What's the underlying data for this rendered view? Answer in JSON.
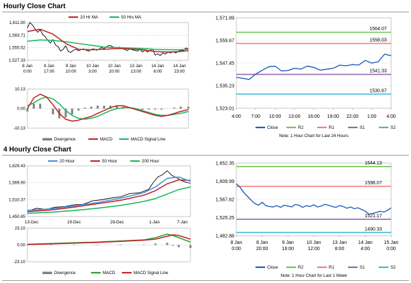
{
  "sections": {
    "hourly_title": "Hourly Close Chart",
    "four_hourly_title": "4 Hourly Close Chart"
  },
  "colors": {
    "close": "#2060b8",
    "r2": "#6cc850",
    "r1": "#f08080",
    "s1": "#9866b0",
    "s2": "#40b8d8",
    "ma_fast": "#c0282c",
    "ma_slow": "#20b860",
    "ma_20h": "#4a90e0",
    "divergence": "#808080",
    "macd_4h": "#2ca02c",
    "signal_4h": "#c0282c",
    "price": "#000000"
  },
  "chart_data": [
    {
      "id": "hourly_price_ma",
      "type": "line",
      "title": "",
      "xlabel": "",
      "ylabel": "",
      "legend": [
        "20 Hr MA",
        "50 Hrs MA"
      ],
      "ylim": [
        1527.33,
        1611.9
      ],
      "yticks": [
        "1,611.90",
        "1,583.71",
        "1,555.52",
        "1,527.33"
      ],
      "xticks": [
        {
          "l1": "8 Jan",
          "l2": "0:00",
          "t": 0
        },
        {
          "l1": "8 Jan",
          "l2": "17:00",
          "t": 17
        },
        {
          "l1": "9 Jan",
          "l2": "10:00",
          "t": 34
        },
        {
          "l1": "10 Jan",
          "l2": "3:00",
          "t": 51
        },
        {
          "l1": "10 Jan",
          "l2": "20:00",
          "t": 68
        },
        {
          "l1": "13 Jan",
          "l2": "13:00",
          "t": 85
        },
        {
          "l1": "14 Jan",
          "l2": "6:00",
          "t": 102
        },
        {
          "l1": "14 Jan",
          "l2": "23:00",
          "t": 119
        }
      ],
      "xlim": [
        0,
        126
      ],
      "series": [
        {
          "name": "Price",
          "x": [
            0,
            2,
            4,
            6,
            8,
            10,
            12,
            14,
            16,
            18,
            20,
            22,
            24,
            26,
            28,
            30,
            32,
            34,
            36,
            38,
            40,
            42,
            44,
            46,
            48,
            50,
            52,
            54,
            56,
            58,
            60,
            62,
            64,
            66,
            68,
            70,
            72,
            74,
            76,
            78,
            80,
            82,
            84,
            86,
            88,
            90,
            92,
            94,
            96,
            98,
            100,
            102,
            104,
            106,
            108,
            110,
            112,
            114,
            116,
            118,
            120,
            122,
            124,
            126
          ],
          "values": [
            1600,
            1612,
            1606,
            1598,
            1590,
            1596,
            1585,
            1580,
            1572,
            1566,
            1574,
            1562,
            1558,
            1548,
            1552,
            1560,
            1547,
            1545,
            1550,
            1552,
            1549,
            1551,
            1553,
            1550,
            1548,
            1552,
            1553,
            1550,
            1552,
            1556,
            1553,
            1558,
            1561,
            1559,
            1556,
            1553,
            1557,
            1554,
            1552,
            1549,
            1553,
            1551,
            1550,
            1548,
            1552,
            1546,
            1550,
            1546,
            1549,
            1553,
            1539,
            1542,
            1538,
            1544,
            1541,
            1546,
            1544,
            1547,
            1544,
            1547,
            1550,
            1549,
            1555,
            1553
          ]
        },
        {
          "name": "20 Hr MA",
          "x": [
            0,
            10,
            20,
            30,
            40,
            50,
            60,
            70,
            80,
            90,
            100,
            110,
            120,
            126
          ],
          "values": [
            1592,
            1597,
            1586,
            1565,
            1552,
            1551,
            1552,
            1554,
            1553,
            1551,
            1547,
            1546,
            1547,
            1549
          ]
        },
        {
          "name": "50 Hrs MA",
          "x": [
            0,
            10,
            20,
            30,
            40,
            50,
            60,
            70,
            80,
            90,
            100,
            110,
            120,
            126
          ],
          "values": [
            1570,
            1573,
            1572,
            1569,
            1565,
            1561,
            1557,
            1556,
            1555,
            1554,
            1552,
            1551,
            1551,
            1552
          ]
        }
      ]
    },
    {
      "id": "hourly_macd",
      "type": "line",
      "legend": [
        "Divergence",
        "MACD",
        "MACD Signal Line"
      ],
      "ylim": [
        -10.13,
        10.13
      ],
      "yticks": [
        "10.13",
        "0.00",
        "-10.13"
      ],
      "xlim": [
        0,
        126
      ],
      "series": [
        {
          "name": "MACD",
          "x": [
            0,
            5,
            10,
            15,
            20,
            25,
            30,
            35,
            40,
            45,
            50,
            55,
            60,
            65,
            70,
            75,
            80,
            85,
            90,
            95,
            100,
            105,
            110,
            115,
            120,
            126
          ],
          "values": [
            0,
            5.5,
            7.5,
            6,
            2,
            -2.5,
            -5.5,
            -6.5,
            -6,
            -5,
            -4,
            -2.5,
            -1,
            0.5,
            1.5,
            1.5,
            0.5,
            -0.5,
            -1.5,
            -2.5,
            -3.5,
            -4,
            -3.5,
            -2.5,
            -1.5,
            -0.5
          ]
        },
        {
          "name": "MACD Signal Line",
          "x": [
            0,
            5,
            10,
            15,
            20,
            25,
            30,
            35,
            40,
            45,
            50,
            55,
            60,
            65,
            70,
            75,
            80,
            85,
            90,
            95,
            100,
            105,
            110,
            115,
            120,
            126
          ],
          "values": [
            1.5,
            3,
            5,
            6,
            5,
            2.5,
            -1,
            -3.5,
            -5,
            -5.5,
            -5,
            -4,
            -2.5,
            -1,
            0,
            0.5,
            0.5,
            0,
            -1,
            -2,
            -3,
            -3.5,
            -3.5,
            -3,
            -2.5,
            -1.5
          ]
        },
        {
          "name": "Divergence",
          "x": [
            0,
            5,
            10,
            15,
            20,
            25,
            30,
            35,
            40,
            45,
            50,
            55,
            60,
            65,
            70,
            75,
            80,
            85,
            90,
            95,
            100,
            105,
            110,
            115,
            120,
            126
          ],
          "values": [
            -1.5,
            2.5,
            2.5,
            0,
            -3,
            -5,
            -4.5,
            -3,
            -1,
            0.5,
            1,
            1.5,
            1.5,
            1.5,
            1.5,
            1,
            0,
            -0.5,
            -0.5,
            -0.5,
            -0.5,
            -0.5,
            0,
            0.5,
            1,
            1
          ]
        }
      ]
    },
    {
      "id": "hourly_close_levels",
      "type": "line",
      "ylim": [
        1523.01,
        1571.89
      ],
      "yticks": [
        "1,571.89",
        "1,559.67",
        "1,547.45",
        "1,535.23",
        "1,523.01"
      ],
      "xlim": [
        4,
        28
      ],
      "xticks": [
        "4:00",
        "7:00",
        "10:00",
        "13:00",
        "16:00",
        "19:00",
        "22:00",
        "1:00",
        "4:00"
      ],
      "legend": [
        "Close",
        "R2",
        "R1",
        "S1",
        "S2"
      ],
      "levels": {
        "R2": 1564.07,
        "R1": 1558.03,
        "S1": 1541.33,
        "S2": 1530.67
      },
      "level_labels": {
        "R2": "1564.07",
        "R1": "1558.03",
        "S1": "1541.33",
        "S2": "1530.67"
      },
      "series": [
        {
          "name": "Close",
          "x": [
            4,
            5,
            6,
            7,
            8,
            9,
            10,
            11,
            12,
            13,
            14,
            15,
            16,
            17,
            18,
            19,
            20,
            21,
            22,
            23,
            24,
            25,
            26,
            27,
            28
          ],
          "values": [
            1539.8,
            1539.2,
            1538.6,
            1541.5,
            1543.5,
            1545.4,
            1545.8,
            1543.2,
            1543.4,
            1544.6,
            1544.2,
            1545.8,
            1545.1,
            1543.6,
            1544.1,
            1544.6,
            1546.3,
            1546.0,
            1546.6,
            1546.4,
            1548.9,
            1547.4,
            1548.2,
            1552.3,
            1551.4
          ]
        }
      ],
      "note": "Note: 1 Hour Chart for Last 24 Hours"
    },
    {
      "id": "four_hourly_price_ma",
      "type": "line",
      "legend": [
        "20 Hour",
        "50 Hour",
        "200 Hour"
      ],
      "ylim": [
        1450.85,
        1629.43
      ],
      "yticks": [
        "1,629.43",
        "1,569.90",
        "1,510.37",
        "1,450.85"
      ],
      "xlim": [
        0,
        140
      ],
      "xticks": [
        "13-Dec",
        "19-Dec",
        "28-Dec",
        "1-Jan",
        "7-Jan"
      ],
      "series": [
        {
          "name": "Price",
          "x": [
            0,
            8,
            16,
            24,
            32,
            40,
            48,
            56,
            64,
            72,
            80,
            88,
            96,
            104,
            108,
            112,
            116,
            120,
            124,
            128,
            132,
            136,
            140
          ],
          "values": [
            1470,
            1480,
            1476,
            1484,
            1486,
            1492,
            1494,
            1506,
            1510,
            1516,
            1520,
            1532,
            1534,
            1546,
            1570,
            1590,
            1598,
            1612,
            1596,
            1588,
            1578,
            1572,
            1568
          ]
        },
        {
          "name": "20 Hour",
          "x": [
            0,
            20,
            40,
            60,
            80,
            100,
            110,
            120,
            130,
            140
          ],
          "values": [
            1472,
            1478,
            1488,
            1500,
            1515,
            1535,
            1555,
            1585,
            1590,
            1575
          ]
        },
        {
          "name": "50 Hour",
          "x": [
            0,
            20,
            40,
            60,
            80,
            100,
            110,
            120,
            130,
            140
          ],
          "values": [
            1468,
            1474,
            1484,
            1496,
            1508,
            1526,
            1542,
            1566,
            1580,
            1578
          ]
        },
        {
          "name": "200 Hour",
          "x": [
            0,
            20,
            40,
            60,
            80,
            100,
            110,
            120,
            130,
            140
          ],
          "values": [
            1462,
            1466,
            1472,
            1480,
            1490,
            1504,
            1514,
            1530,
            1546,
            1555
          ]
        }
      ]
    },
    {
      "id": "four_hourly_macd",
      "type": "line",
      "legend": [
        "Divergence",
        "MACD",
        "MACD Signal Line"
      ],
      "ylim": [
        -23.1,
        23.1
      ],
      "yticks": [
        "23.10",
        "0.00",
        "-23.10"
      ],
      "xlim": [
        0,
        140
      ],
      "series": [
        {
          "name": "MACD",
          "x": [
            0,
            20,
            40,
            60,
            80,
            100,
            110,
            120,
            125,
            130,
            140
          ],
          "values": [
            1,
            2,
            3,
            4,
            5.5,
            7,
            10,
            15,
            13,
            10,
            4
          ]
        },
        {
          "name": "MACD Signal Line",
          "x": [
            0,
            20,
            40,
            60,
            80,
            100,
            110,
            120,
            125,
            130,
            140
          ],
          "values": [
            0.5,
            1.5,
            2.5,
            3.5,
            5,
            6.5,
            8,
            12,
            14,
            13,
            8
          ]
        },
        {
          "name": "Divergence",
          "x": [
            0,
            20,
            40,
            60,
            80,
            100,
            110,
            120,
            125,
            130,
            140
          ],
          "values": [
            0.5,
            0.5,
            0.5,
            0.5,
            0.5,
            0.5,
            2,
            3,
            -1,
            -3,
            -4
          ]
        }
      ]
    },
    {
      "id": "four_hourly_close_levels",
      "type": "line",
      "ylim": [
        1482.88,
        1652.35
      ],
      "yticks": [
        "1,652.35",
        "1,609.99",
        "1,567.62",
        "1,525.25",
        "1,482.88"
      ],
      "xlim": [
        0,
        168
      ],
      "xticks": [
        {
          "l1": "8 Jan",
          "l2": "0:00"
        },
        {
          "l1": "8 Jan",
          "l2": "20:00"
        },
        {
          "l1": "9 Jan",
          "l2": "16:00"
        },
        {
          "l1": "10 Jan",
          "l2": "12:00"
        },
        {
          "l1": "13 Jan",
          "l2": "8:00"
        },
        {
          "l1": "14 Jan",
          "l2": "4:00"
        },
        {
          "l1": "15 Jan",
          "l2": "0:00"
        }
      ],
      "legend": [
        "Close",
        "R2",
        "R1",
        "S1",
        "S2"
      ],
      "levels": {
        "R2": 1644.13,
        "R1": 1598.07,
        "S1": 1521.17,
        "S2": 1490.33
      },
      "level_labels": {
        "R2": "1644.13",
        "R1": "1598.07",
        "S1": "1521.17",
        "S2": "1490.33"
      },
      "series": [
        {
          "name": "Close",
          "x": [
            0,
            4,
            8,
            12,
            16,
            20,
            24,
            28,
            32,
            36,
            40,
            44,
            48,
            52,
            56,
            60,
            64,
            68,
            72,
            76,
            80,
            84,
            88,
            92,
            96,
            100,
            104,
            108,
            112,
            116,
            120,
            124,
            128,
            132,
            136,
            140,
            144,
            148,
            152,
            156,
            160,
            164,
            168
          ],
          "values": [
            1604,
            1596,
            1584,
            1575,
            1566,
            1558,
            1554,
            1561,
            1553,
            1551,
            1550,
            1553,
            1549,
            1554,
            1552,
            1550,
            1556,
            1554,
            1549,
            1553,
            1551,
            1555,
            1550,
            1552,
            1556,
            1554,
            1551,
            1549,
            1553,
            1551,
            1547,
            1550,
            1546,
            1548,
            1544,
            1540,
            1533,
            1535,
            1537,
            1540,
            1538,
            1542,
            1548
          ]
        }
      ],
      "note": "Note: 1 Hour Chart for Last 1 Week"
    }
  ]
}
